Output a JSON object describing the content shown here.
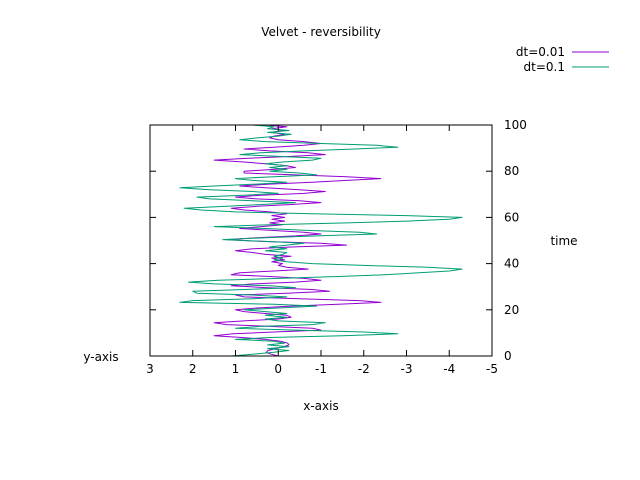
{
  "chart_data": {
    "type": "line",
    "title": "Velvet - reversibility",
    "xlabel": "x-axis",
    "ylabel": "y-axis",
    "y2label": "time",
    "xlim": [
      3,
      -5
    ],
    "ylim": [
      0,
      100
    ],
    "x_reversed": true,
    "y_axis_side": "right",
    "xticks": [
      "3",
      "2",
      "1",
      "0",
      "-1",
      "-2",
      "-3",
      "-4",
      "-5"
    ],
    "yticks": [
      "0",
      "20",
      "40",
      "60",
      "80",
      "100"
    ],
    "legend_position": "top-right",
    "grid": false,
    "series": [
      {
        "name": "dt=0.01",
        "color": "#9400d3",
        "points": [
          [
            0,
            0.0
          ],
          [
            0.17,
            0.8
          ],
          [
            0.28,
            1.6
          ],
          [
            0.24,
            2.4
          ],
          [
            0.06,
            3.2
          ],
          [
            -0.12,
            4.0
          ],
          [
            -0.25,
            4.8
          ],
          [
            -0.22,
            5.6
          ],
          [
            -0.05,
            6.4
          ],
          [
            0.3,
            7.2
          ],
          [
            0.85,
            8.0
          ],
          [
            1.5,
            8.8
          ],
          [
            1.05,
            9.6
          ],
          [
            0.1,
            10.4
          ],
          [
            -1.0,
            11.2
          ],
          [
            -0.8,
            12.0
          ],
          [
            0.2,
            12.8
          ],
          [
            1.2,
            13.6
          ],
          [
            1.5,
            14.4
          ],
          [
            0.8,
            15.2
          ],
          [
            0.0,
            16.0
          ],
          [
            -0.3,
            16.8
          ],
          [
            -0.2,
            17.6
          ],
          [
            0.3,
            18.4
          ],
          [
            0.8,
            19.2
          ],
          [
            1.0,
            20.0
          ],
          [
            0.5,
            20.8
          ],
          [
            -0.3,
            21.6
          ],
          [
            -1.4,
            22.4
          ],
          [
            -2.4,
            23.2
          ],
          [
            -1.9,
            24.0
          ],
          [
            -0.5,
            24.8
          ],
          [
            0.8,
            25.6
          ],
          [
            1.0,
            26.4
          ],
          [
            -0.2,
            27.2
          ],
          [
            -1.2,
            28.0
          ],
          [
            -0.8,
            28.8
          ],
          [
            0.3,
            29.6
          ],
          [
            1.1,
            30.4
          ],
          [
            0.6,
            31.2
          ],
          [
            -0.4,
            32.0
          ],
          [
            -1.0,
            32.8
          ],
          [
            -0.6,
            33.6
          ],
          [
            0.2,
            34.4
          ],
          [
            1.1,
            35.2
          ],
          [
            0.9,
            36.0
          ],
          [
            0.1,
            36.8
          ],
          [
            -0.7,
            37.6
          ],
          [
            -0.2,
            38.4
          ],
          [
            0.0,
            39.2
          ],
          [
            -0.1,
            40.0
          ],
          [
            0.15,
            40.8
          ],
          [
            -0.15,
            41.6
          ],
          [
            0.15,
            42.4
          ],
          [
            -0.3,
            43.2
          ],
          [
            0.3,
            44.0
          ],
          [
            0.6,
            44.8
          ],
          [
            1.0,
            45.6
          ],
          [
            0.6,
            46.4
          ],
          [
            -0.3,
            47.2
          ],
          [
            -1.6,
            48.0
          ],
          [
            -1.0,
            48.8
          ],
          [
            0.4,
            49.6
          ],
          [
            1.2,
            50.4
          ],
          [
            0.5,
            51.2
          ],
          [
            -0.4,
            52.0
          ],
          [
            -1.0,
            52.8
          ],
          [
            -0.6,
            53.6
          ],
          [
            0.2,
            54.4
          ],
          [
            0.9,
            55.2
          ],
          [
            0.4,
            56.0
          ],
          [
            -0.1,
            56.8
          ],
          [
            0.2,
            57.6
          ],
          [
            -0.15,
            58.4
          ],
          [
            0.15,
            59.2
          ],
          [
            -0.15,
            60.0
          ],
          [
            0.15,
            60.8
          ],
          [
            -0.2,
            61.6
          ],
          [
            0.2,
            62.4
          ],
          [
            0.8,
            63.2
          ],
          [
            1.1,
            64.0
          ],
          [
            0.5,
            64.8
          ],
          [
            -0.3,
            65.6
          ],
          [
            -1.0,
            66.4
          ],
          [
            -0.5,
            67.2
          ],
          [
            0.5,
            68.0
          ],
          [
            1.0,
            68.8
          ],
          [
            0.4,
            69.6
          ],
          [
            -0.6,
            70.4
          ],
          [
            -1.1,
            71.2
          ],
          [
            -0.5,
            72.0
          ],
          [
            0.3,
            72.8
          ],
          [
            0.9,
            73.6
          ],
          [
            0.2,
            74.4
          ],
          [
            -0.8,
            75.2
          ],
          [
            -1.6,
            76.0
          ],
          [
            -2.4,
            76.8
          ],
          [
            -1.6,
            77.6
          ],
          [
            -0.4,
            78.4
          ],
          [
            0.8,
            79.2
          ],
          [
            0.8,
            80.0
          ],
          [
            0.1,
            80.8
          ],
          [
            -0.4,
            81.6
          ],
          [
            -0.2,
            82.4
          ],
          [
            0.3,
            83.2
          ],
          [
            0.8,
            84.0
          ],
          [
            1.5,
            84.8
          ],
          [
            0.7,
            85.6
          ],
          [
            -0.3,
            86.4
          ],
          [
            -1.1,
            87.2
          ],
          [
            -0.7,
            88.0
          ],
          [
            0.2,
            88.8
          ],
          [
            0.8,
            89.6
          ],
          [
            0.1,
            90.4
          ],
          [
            -0.6,
            91.2
          ],
          [
            -1.0,
            92.0
          ],
          [
            -0.6,
            92.8
          ],
          [
            0.0,
            93.6
          ],
          [
            0.2,
            94.4
          ],
          [
            0.1,
            95.2
          ],
          [
            -0.15,
            96.0
          ],
          [
            0.15,
            96.8
          ],
          [
            -0.15,
            97.6
          ],
          [
            0.15,
            98.4
          ],
          [
            -0.2,
            99.2
          ],
          [
            0.3,
            100.0
          ]
        ]
      },
      {
        "name": "dt=0.1",
        "color": "#009e73",
        "points": [
          [
            1.1,
            0.0
          ],
          [
            0.6,
            0.8
          ],
          [
            0.1,
            1.6
          ],
          [
            -0.25,
            2.4
          ],
          [
            0.25,
            3.2
          ],
          [
            -0.25,
            4.0
          ],
          [
            0.25,
            4.8
          ],
          [
            -0.15,
            5.6
          ],
          [
            0.1,
            6.4
          ],
          [
            1.0,
            7.2
          ],
          [
            0.2,
            8.0
          ],
          [
            -1.5,
            8.8
          ],
          [
            -2.8,
            9.6
          ],
          [
            -2.0,
            10.4
          ],
          [
            -0.4,
            11.2
          ],
          [
            1.0,
            12.0
          ],
          [
            0.4,
            12.8
          ],
          [
            -0.8,
            13.6
          ],
          [
            -1.1,
            14.4
          ],
          [
            0.0,
            15.2
          ],
          [
            0.3,
            16.0
          ],
          [
            -0.2,
            16.8
          ],
          [
            0.3,
            17.6
          ],
          [
            -0.2,
            18.4
          ],
          [
            0.3,
            19.2
          ],
          [
            0.8,
            20.0
          ],
          [
            0.0,
            20.8
          ],
          [
            -0.9,
            21.6
          ],
          [
            0.1,
            22.4
          ],
          [
            2.3,
            23.2
          ],
          [
            2.0,
            24.0
          ],
          [
            0.6,
            24.8
          ],
          [
            -0.2,
            25.6
          ],
          [
            0.6,
            26.4
          ],
          [
            1.9,
            27.2
          ],
          [
            2.0,
            28.0
          ],
          [
            0.8,
            28.8
          ],
          [
            -0.4,
            29.6
          ],
          [
            0.2,
            30.4
          ],
          [
            1.5,
            31.2
          ],
          [
            2.1,
            32.0
          ],
          [
            1.4,
            32.8
          ],
          [
            0.0,
            33.6
          ],
          [
            -1.4,
            34.4
          ],
          [
            -2.5,
            35.2
          ],
          [
            -3.3,
            36.0
          ],
          [
            -4.0,
            36.8
          ],
          [
            -4.3,
            37.6
          ],
          [
            -3.5,
            38.4
          ],
          [
            -2.0,
            39.2
          ],
          [
            -0.8,
            40.0
          ],
          [
            -0.2,
            40.8
          ],
          [
            0.1,
            41.6
          ],
          [
            -0.1,
            42.4
          ],
          [
            0.1,
            43.2
          ],
          [
            -0.1,
            44.0
          ],
          [
            -0.2,
            44.8
          ],
          [
            0.3,
            45.6
          ],
          [
            -0.2,
            46.4
          ],
          [
            0.2,
            47.2
          ],
          [
            -0.2,
            48.0
          ],
          [
            -0.6,
            48.8
          ],
          [
            0.3,
            49.6
          ],
          [
            1.3,
            50.4
          ],
          [
            0.3,
            51.2
          ],
          [
            -0.9,
            52.0
          ],
          [
            -2.3,
            52.8
          ],
          [
            -1.9,
            53.6
          ],
          [
            -0.6,
            54.4
          ],
          [
            0.3,
            55.2
          ],
          [
            1.5,
            56.0
          ],
          [
            0.2,
            56.8
          ],
          [
            -1.6,
            57.6
          ],
          [
            -3.0,
            58.4
          ],
          [
            -4.0,
            59.2
          ],
          [
            -4.3,
            60.0
          ],
          [
            -3.0,
            60.8
          ],
          [
            -0.8,
            61.6
          ],
          [
            1.0,
            62.4
          ],
          [
            1.8,
            63.2
          ],
          [
            2.2,
            64.0
          ],
          [
            1.2,
            64.8
          ],
          [
            0.4,
            65.6
          ],
          [
            -0.4,
            66.4
          ],
          [
            0.6,
            67.2
          ],
          [
            1.6,
            68.0
          ],
          [
            1.9,
            68.8
          ],
          [
            0.8,
            69.6
          ],
          [
            0.0,
            70.4
          ],
          [
            0.6,
            71.2
          ],
          [
            1.6,
            72.0
          ],
          [
            2.3,
            72.8
          ],
          [
            1.5,
            73.6
          ],
          [
            0.5,
            74.4
          ],
          [
            -0.2,
            75.2
          ],
          [
            0.6,
            76.0
          ],
          [
            1.0,
            76.8
          ],
          [
            0.1,
            77.6
          ],
          [
            -0.9,
            78.4
          ],
          [
            -0.5,
            79.2
          ],
          [
            0.2,
            80.0
          ],
          [
            -0.2,
            80.8
          ],
          [
            0.2,
            81.6
          ],
          [
            -0.2,
            82.4
          ],
          [
            0.3,
            83.2
          ],
          [
            -0.1,
            84.0
          ],
          [
            -0.8,
            84.8
          ],
          [
            -1.0,
            85.6
          ],
          [
            0.0,
            86.4
          ],
          [
            0.9,
            87.2
          ],
          [
            0.4,
            88.0
          ],
          [
            -0.6,
            88.8
          ],
          [
            -1.8,
            89.6
          ],
          [
            -2.8,
            90.4
          ],
          [
            -2.3,
            91.2
          ],
          [
            -1.0,
            92.0
          ],
          [
            0.3,
            92.8
          ],
          [
            0.9,
            93.6
          ],
          [
            0.5,
            94.4
          ],
          [
            0.0,
            95.2
          ],
          [
            -0.3,
            96.0
          ],
          [
            0.25,
            96.8
          ],
          [
            -0.25,
            97.6
          ],
          [
            0.25,
            98.4
          ],
          [
            0.1,
            99.2
          ],
          [
            0.6,
            100.0
          ]
        ]
      }
    ]
  }
}
